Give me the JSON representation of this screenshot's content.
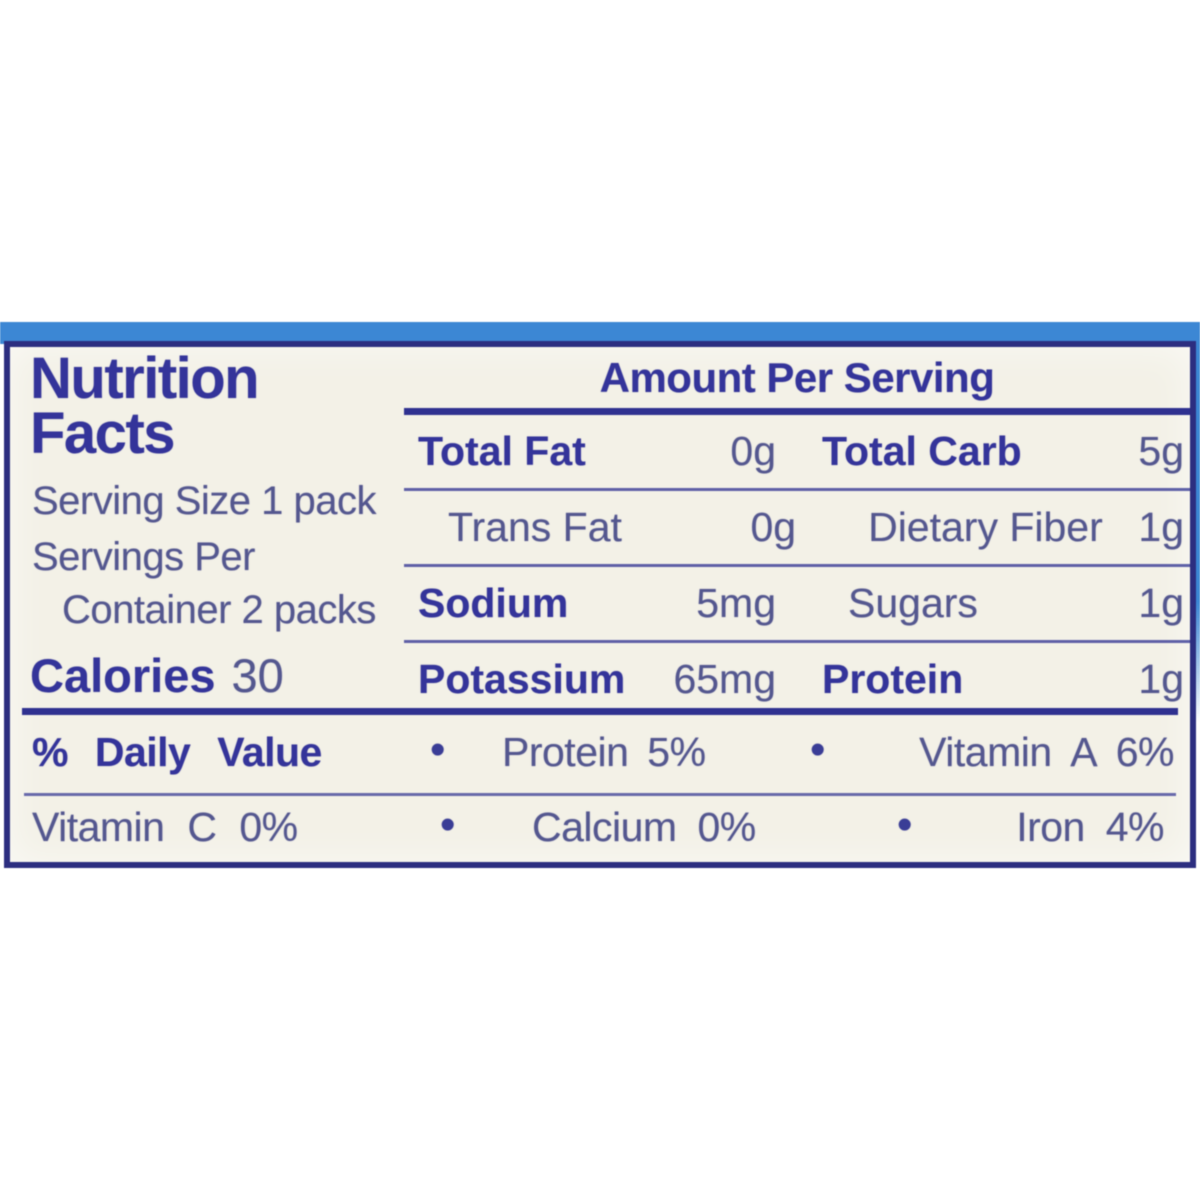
{
  "colors": {
    "package_blue": "#3c87d4",
    "label_background": "#f3f1e7",
    "border_navy": "#2c2e80",
    "text_bold_navy": "#34349a",
    "text_regular_navy": "#54578f"
  },
  "label": {
    "title_line1": "Nutrition",
    "title_line2": "Facts",
    "serving_size": "Serving Size 1 pack",
    "servings_per_line1": "Servings Per",
    "servings_per_line2": "Container 2 packs",
    "calories_label": "Calories",
    "calories_value": "30",
    "amount_header": "Amount Per Serving",
    "nutrient_rows": [
      {
        "l_name": "Total Fat",
        "l_value": "0g",
        "r_name": "Total Carb",
        "r_value": "5g"
      },
      {
        "l_name": "Trans Fat",
        "l_value": "0g",
        "r_name": "Dietary Fiber",
        "r_value": "1g"
      },
      {
        "l_name": "Sodium",
        "l_value": "5mg",
        "r_name": "Sugars",
        "r_value": "1g"
      },
      {
        "l_name": "Potassium",
        "l_value": "65mg",
        "r_name": "Protein",
        "r_value": "1g"
      }
    ],
    "daily_values": {
      "bullet": "•",
      "row1_col1": "% Daily Value",
      "row1_col2": "Protein 5%",
      "row1_col3": "Vitamin A 6%",
      "row2_col1": "Vitamin C 0%",
      "row2_col2": "Calcium 0%",
      "row2_col3": "Iron 4%"
    }
  }
}
